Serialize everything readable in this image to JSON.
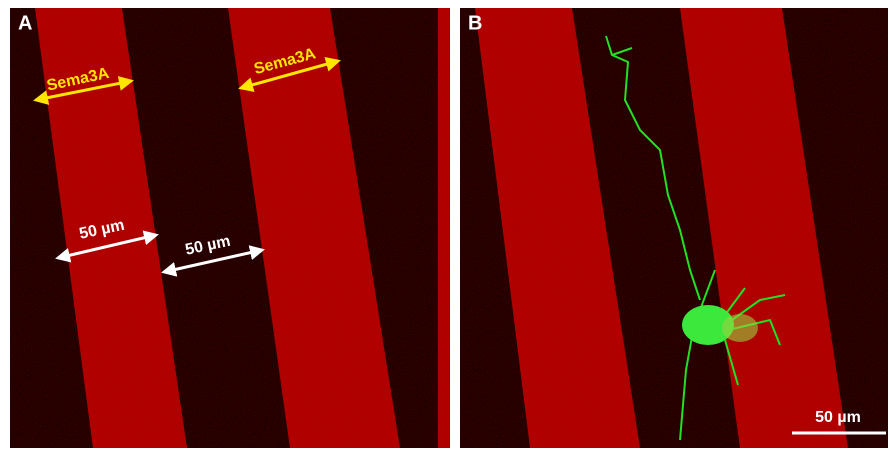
{
  "panels": [
    {
      "label": "A",
      "annotations": [
        "Sema3A",
        "Sema3A",
        "50 µm",
        "50 µm"
      ]
    },
    {
      "label": "B",
      "scale_bar": "50 µm"
    }
  ]
}
